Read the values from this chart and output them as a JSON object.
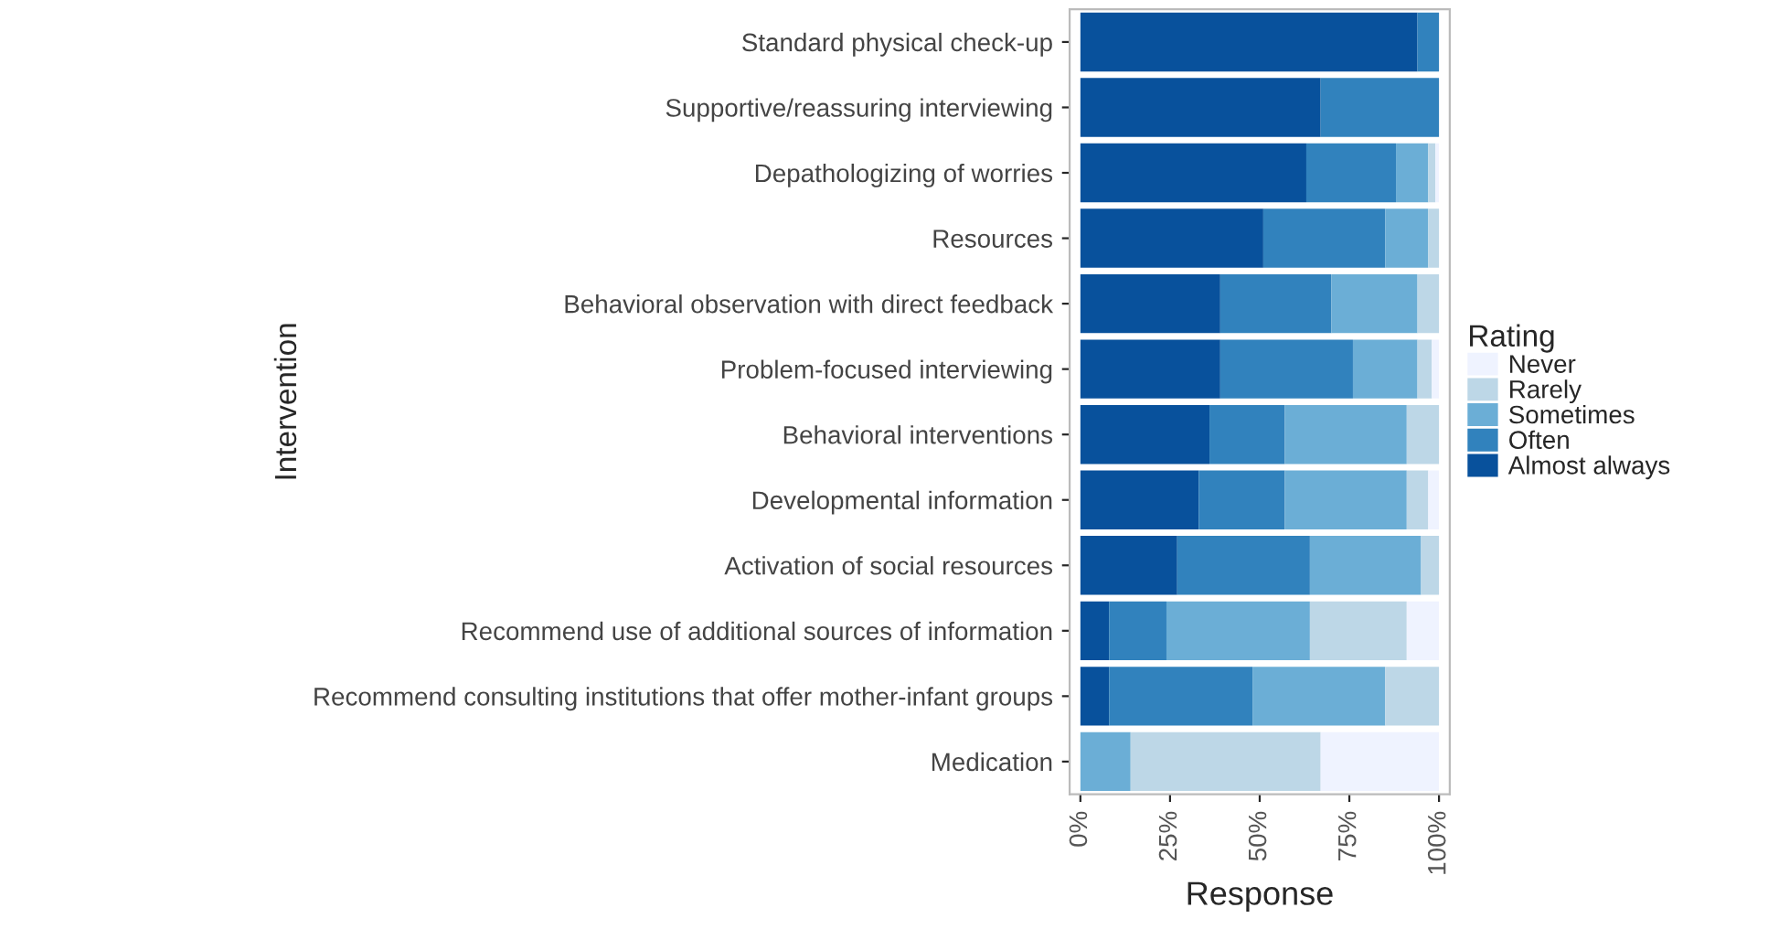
{
  "chart_data": {
    "type": "bar",
    "orientation": "horizontal",
    "stacked": true,
    "xlabel": "Response",
    "ylabel": "Intervention",
    "legend_title": "Rating",
    "legend": "right",
    "categories": [
      "Standard physical check-up",
      "Supportive/reassuring interviewing",
      "Depathologizing of worries",
      "Resources",
      "Behavioral observation with direct feedback",
      "Problem-focused interviewing",
      "Behavioral interventions",
      "Developmental information",
      "Activation of social resources",
      "Recommend use of additional sources of information",
      "Recommend consulting institutions that offer mother-infant groups",
      "Medication"
    ],
    "xlim": [
      -3,
      103
    ],
    "xticks": [
      {
        "value": 0,
        "label": "0%"
      },
      {
        "value": 25,
        "label": "25%"
      },
      {
        "value": 50,
        "label": "50%"
      },
      {
        "value": 75,
        "label": "75%"
      },
      {
        "value": 100,
        "label": "100%"
      }
    ],
    "series": [
      {
        "name": "Almost always",
        "color": "#08519c",
        "values": [
          94,
          67,
          63,
          51,
          39,
          39,
          36,
          33,
          27,
          8,
          8,
          0
        ]
      },
      {
        "name": "Often",
        "color": "#3182bd",
        "values": [
          6,
          33,
          25,
          34,
          31,
          37,
          21,
          24,
          37,
          16,
          40,
          0
        ]
      },
      {
        "name": "Sometimes",
        "color": "#6baed6",
        "values": [
          0,
          0,
          9,
          12,
          24,
          18,
          34,
          34,
          31,
          40,
          37,
          14
        ]
      },
      {
        "name": "Rarely",
        "color": "#bdd7e7",
        "values": [
          0,
          0,
          2,
          3,
          6,
          4,
          9,
          6,
          5,
          27,
          15,
          53
        ]
      },
      {
        "name": "Never",
        "color": "#eff3ff",
        "values": [
          0,
          0,
          1,
          0,
          0,
          2,
          0,
          3,
          0,
          9,
          0,
          33
        ]
      }
    ]
  }
}
